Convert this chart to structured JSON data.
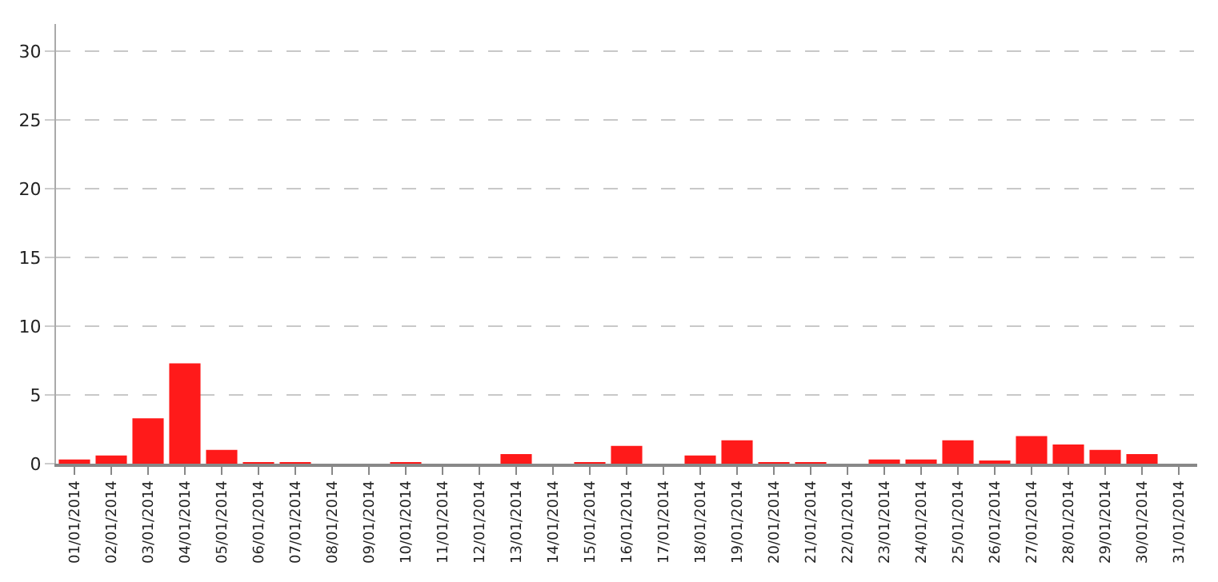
{
  "chart_data": {
    "type": "bar",
    "categories": [
      "01/01/2014",
      "02/01/2014",
      "03/01/2014",
      "04/01/2014",
      "05/01/2014",
      "06/01/2014",
      "07/01/2014",
      "08/01/2014",
      "09/01/2014",
      "10/01/2014",
      "11/01/2014",
      "12/01/2014",
      "13/01/2014",
      "14/01/2014",
      "15/01/2014",
      "16/01/2014",
      "17/01/2014",
      "18/01/2014",
      "19/01/2014",
      "20/01/2014",
      "21/01/2014",
      "22/01/2014",
      "23/01/2014",
      "24/01/2014",
      "25/01/2014",
      "26/01/2014",
      "27/01/2014",
      "28/01/2014",
      "29/01/2014",
      "30/01/2014",
      "31/01/2014"
    ],
    "values": [
      0.3,
      0.6,
      3.3,
      7.3,
      1.0,
      0.1,
      0.1,
      0,
      0,
      0.1,
      0,
      0,
      0.7,
      0,
      0.1,
      1.3,
      0,
      0.6,
      1.7,
      0.1,
      0.1,
      0,
      0.3,
      0.3,
      1.7,
      0.2,
      2.0,
      1.4,
      1.0,
      0.7,
      0
    ],
    "color": "#ff1a1a",
    "ylim": [
      0,
      32
    ],
    "yticks": [
      0,
      5,
      10,
      15,
      20,
      25,
      30
    ],
    "grid": "y"
  }
}
